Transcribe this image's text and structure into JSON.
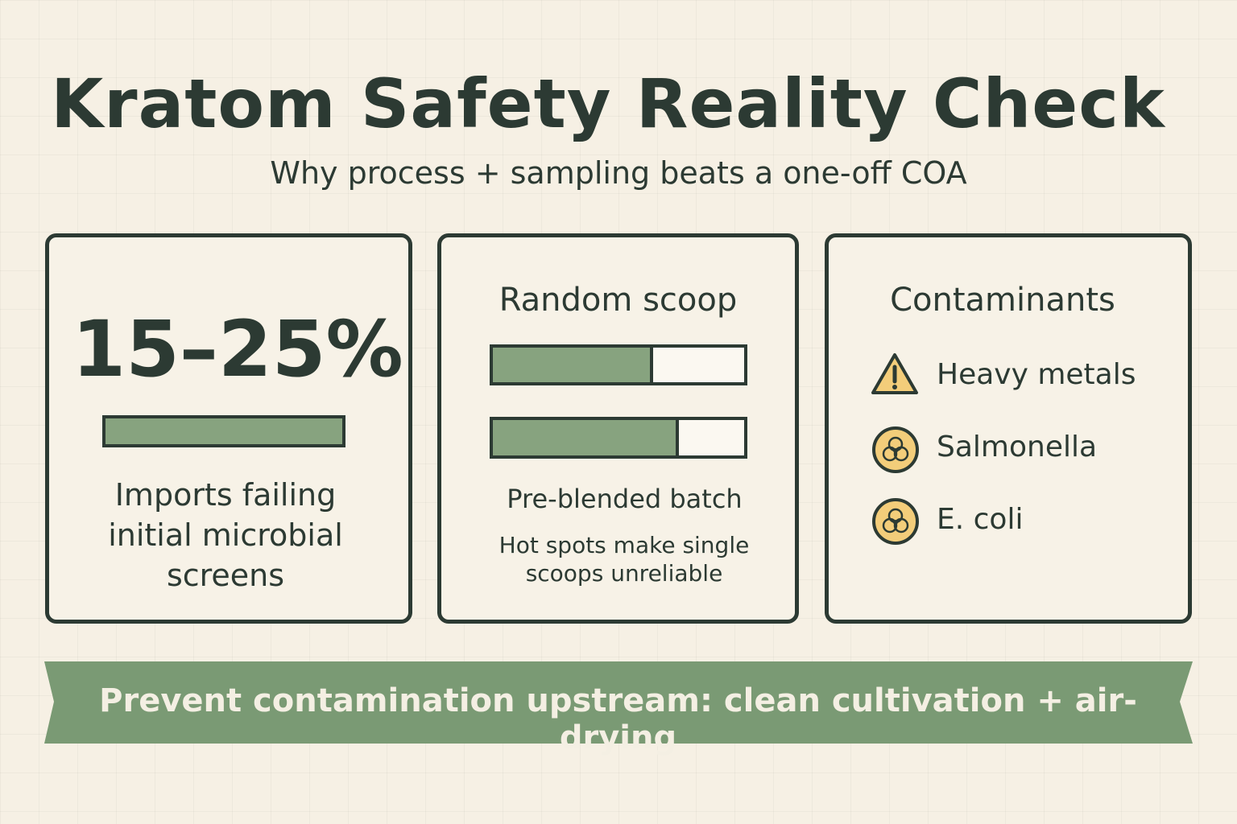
{
  "header": {
    "title": "Kratom Safety Reality Check",
    "subtitle": "Why process + sampling beats a one-off COA"
  },
  "cards": [
    {
      "stat": "15–25%",
      "caption": "Imports failing initial microbial screens"
    },
    {
      "title": "Random scoop",
      "label": "Pre-blended batch",
      "note": "Hot spots make single scoops unreliable"
    },
    {
      "title": "Contaminants",
      "items": [
        "Heavy metals",
        "Salmonella",
        "E. coli"
      ]
    }
  ],
  "banner": {
    "text": "Prevent contamination upstream: clean cultivation + air-drying"
  }
}
